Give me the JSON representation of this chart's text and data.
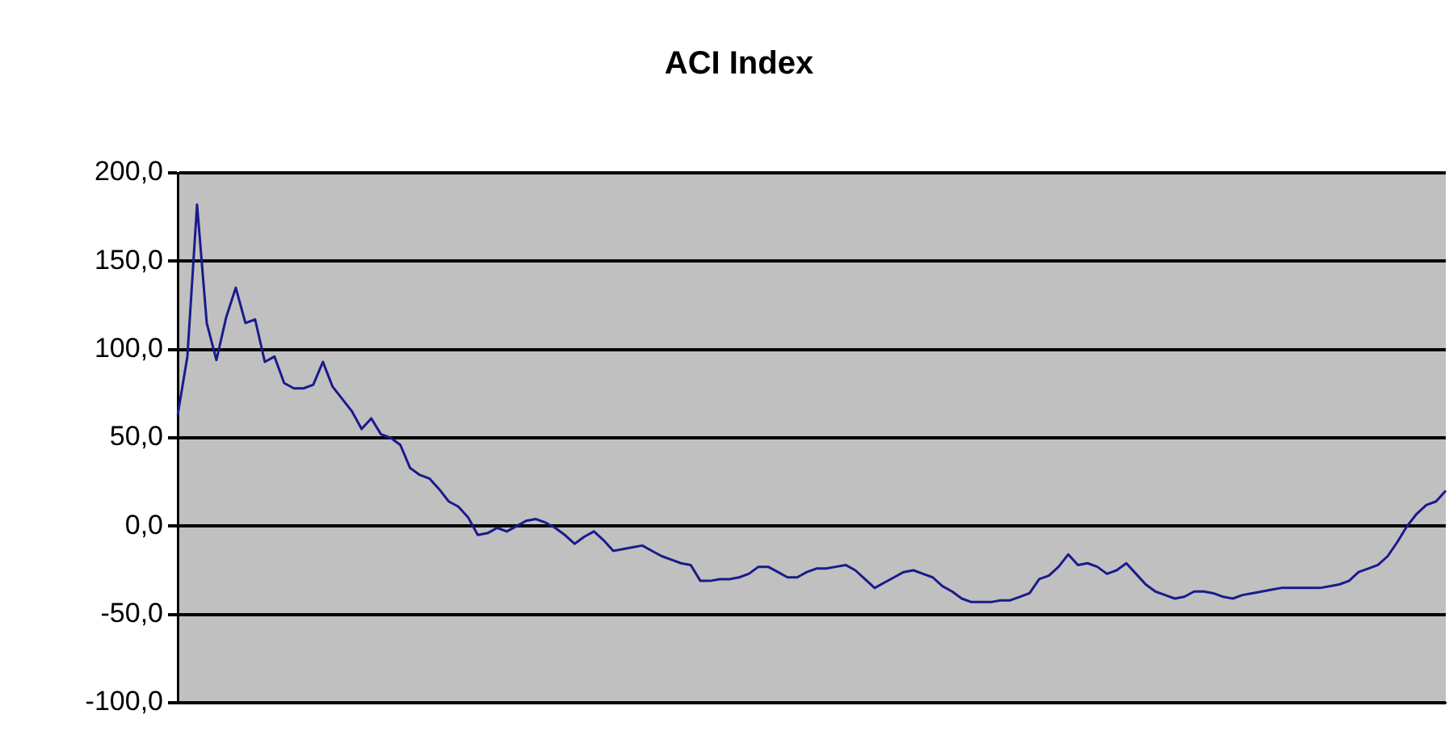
{
  "chart_data": {
    "type": "line",
    "title": "ACI Index",
    "categories": [
      null,
      null,
      null,
      null,
      null,
      null,
      null,
      null,
      null,
      null,
      null,
      null,
      null,
      null,
      null,
      null,
      null,
      null,
      null,
      null,
      null,
      null,
      null,
      null,
      null,
      null,
      null,
      null,
      null,
      null,
      null,
      null,
      null,
      null,
      null,
      null,
      null,
      null,
      null,
      null,
      null,
      null,
      null,
      null,
      null,
      null,
      null,
      null,
      null,
      null,
      null,
      null,
      null,
      null,
      null,
      null,
      null,
      null,
      null,
      null,
      null,
      null,
      null,
      null,
      null,
      null,
      null,
      null,
      null,
      null,
      null,
      null,
      null,
      null,
      null,
      null,
      null,
      null,
      null,
      null,
      null,
      null,
      null,
      null,
      null,
      null,
      null,
      null,
      null,
      null,
      null,
      null,
      null,
      null,
      null,
      null,
      null,
      null,
      null,
      null,
      null,
      null,
      null,
      null,
      null,
      null,
      null,
      null,
      null,
      null,
      null,
      null,
      null,
      null,
      null,
      null,
      null,
      null,
      null,
      null,
      null,
      null,
      null,
      null,
      null,
      null,
      null,
      null,
      null,
      null,
      null,
      null
    ],
    "series": [
      {
        "color": "#1a1a8c",
        "values": [
          63,
          96,
          182,
          115,
          94,
          118,
          135,
          115,
          117,
          93,
          96,
          81,
          78,
          78,
          80,
          93,
          79,
          72,
          65,
          55,
          61,
          52,
          50,
          46,
          33,
          29,
          27,
          21,
          14,
          11,
          5,
          -5,
          -4,
          -1,
          -3,
          0,
          3,
          4,
          2,
          -1,
          -5,
          -10,
          -6,
          -3,
          -8,
          -14,
          -13,
          -12,
          -11,
          -14,
          -17,
          -19,
          -21,
          -22,
          -31,
          -31,
          -30,
          -30,
          -29,
          -27,
          -23,
          -23,
          -26,
          -29,
          -29,
          -26,
          -24,
          -24,
          -23,
          -22,
          -25,
          -30,
          -35,
          -32,
          -29,
          -26,
          -25,
          -27,
          -29,
          -34,
          -37,
          -41,
          -43,
          -43,
          -43,
          -42,
          -42,
          -40,
          -38,
          -30,
          -28,
          -23,
          -16,
          -22,
          -21,
          -23,
          -27,
          -25,
          -21,
          -27,
          -33,
          -37,
          -39,
          -41,
          -40,
          -37,
          -37,
          -38,
          -40,
          -41,
          -39,
          -38,
          -37,
          -36,
          -35,
          -35,
          -35,
          -35,
          -35,
          -34,
          -33,
          -31,
          -26,
          -24,
          -22,
          -17,
          -9,
          0,
          7,
          12,
          14,
          20
        ]
      }
    ],
    "ylim": [
      -100,
      200
    ],
    "yticks": [
      {
        "value": -100,
        "label": "-100,0"
      },
      {
        "value": -50,
        "label": "-50,0"
      },
      {
        "value": 0,
        "label": "0,0"
      },
      {
        "value": 50,
        "label": "50,0"
      },
      {
        "value": 100,
        "label": "100,0"
      },
      {
        "value": 150,
        "label": "150,0"
      },
      {
        "value": 200,
        "label": "200,0"
      }
    ],
    "grid": "y",
    "legend": false,
    "marker": "none",
    "line_style": "solid"
  }
}
